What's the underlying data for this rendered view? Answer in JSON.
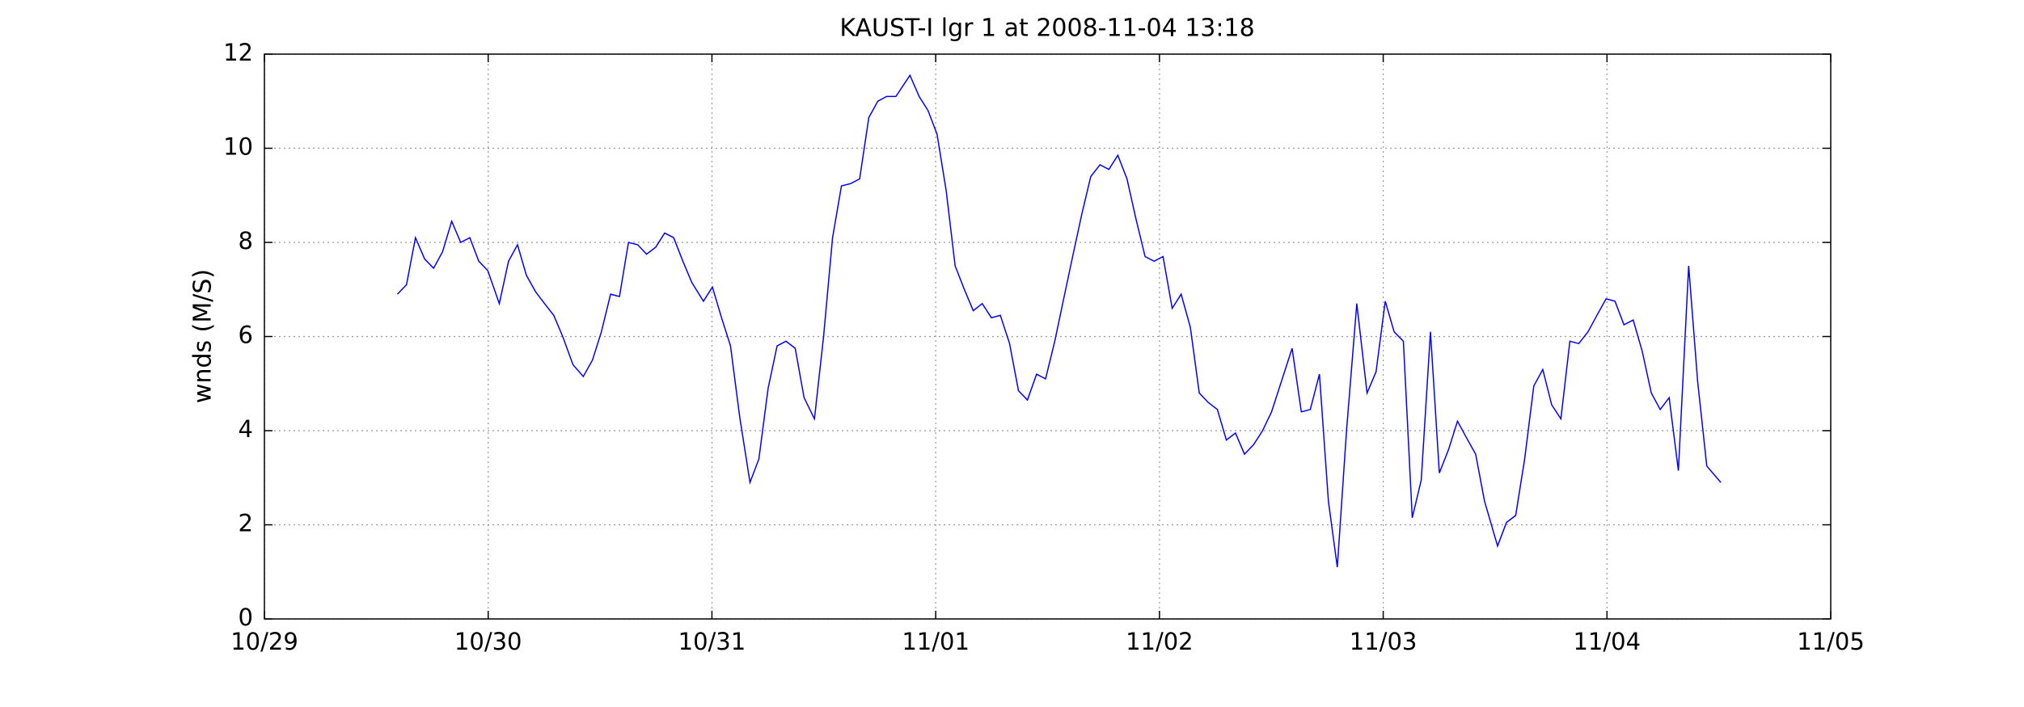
{
  "chart_data": {
    "type": "line",
    "title": "KAUST-I lgr 1 at 2008-11-04 13:18",
    "y_label": "wnds (M/S)",
    "color": "#0000ff",
    "grid": true,
    "xlim": [
      0,
      7
    ],
    "xticks": [
      {
        "value": 0,
        "label": "10/29"
      },
      {
        "value": 1,
        "label": "10/30"
      },
      {
        "value": 2,
        "label": "10/31"
      },
      {
        "value": 3,
        "label": "11/01"
      },
      {
        "value": 4,
        "label": "11/02"
      },
      {
        "value": 5,
        "label": "11/03"
      },
      {
        "value": 6,
        "label": "11/04"
      },
      {
        "value": 7,
        "label": "11/05"
      }
    ],
    "ylim": [
      0,
      12
    ],
    "yticks": [
      0,
      2,
      4,
      6,
      8,
      10,
      12
    ],
    "x": [
      0.594,
      0.635,
      0.675,
      0.716,
      0.756,
      0.796,
      0.837,
      0.877,
      0.918,
      0.958,
      0.998,
      1.05,
      1.091,
      1.131,
      1.171,
      1.212,
      1.252,
      1.293,
      1.333,
      1.379,
      1.425,
      1.466,
      1.506,
      1.547,
      1.587,
      1.627,
      1.668,
      1.708,
      1.749,
      1.789,
      1.829,
      1.87,
      1.91,
      1.962,
      2.002,
      2.043,
      2.083,
      2.124,
      2.17,
      2.21,
      2.251,
      2.291,
      2.331,
      2.372,
      2.412,
      2.458,
      2.499,
      2.539,
      2.579,
      2.62,
      2.66,
      2.701,
      2.741,
      2.781,
      2.822,
      2.885,
      2.926,
      2.966,
      3.006,
      3.047,
      3.087,
      3.128,
      3.168,
      3.208,
      3.249,
      3.289,
      3.33,
      3.37,
      3.41,
      3.451,
      3.491,
      3.532,
      3.572,
      3.612,
      3.653,
      3.693,
      3.734,
      3.774,
      3.814,
      3.855,
      3.895,
      3.936,
      3.976,
      4.016,
      4.057,
      4.097,
      4.138,
      4.178,
      4.218,
      4.259,
      4.299,
      4.34,
      4.38,
      4.42,
      4.461,
      4.501,
      4.593,
      4.634,
      4.674,
      4.715,
      4.755,
      4.795,
      4.836,
      4.882,
      4.928,
      4.968,
      5.009,
      5.049,
      5.09,
      5.13,
      5.17,
      5.211,
      5.251,
      5.292,
      5.332,
      5.372,
      5.413,
      5.453,
      5.511,
      5.551,
      5.592,
      5.632,
      5.673,
      5.713,
      5.753,
      5.794,
      5.834,
      5.874,
      5.915,
      5.955,
      5.996,
      6.036,
      6.076,
      6.117,
      6.157,
      6.198,
      6.238,
      6.278,
      6.319,
      6.365,
      6.405,
      6.446,
      6.509
    ],
    "values": [
      6.9,
      7.1,
      8.1,
      7.65,
      7.45,
      7.8,
      8.45,
      8.0,
      8.1,
      7.6,
      7.4,
      6.7,
      7.6,
      7.95,
      7.3,
      6.95,
      6.7,
      6.45,
      6.0,
      5.4,
      5.15,
      5.5,
      6.1,
      6.9,
      6.85,
      8.0,
      7.95,
      7.75,
      7.9,
      8.2,
      8.1,
      7.6,
      7.15,
      6.75,
      7.05,
      6.4,
      5.8,
      4.3,
      2.9,
      3.4,
      4.9,
      5.8,
      5.9,
      5.75,
      4.7,
      4.25,
      6.0,
      8.1,
      9.2,
      9.25,
      9.35,
      10.65,
      11.0,
      11.1,
      11.1,
      11.55,
      11.1,
      10.8,
      10.3,
      9.1,
      7.5,
      7.0,
      6.55,
      6.7,
      6.4,
      6.45,
      5.85,
      4.85,
      4.65,
      5.2,
      5.1,
      5.9,
      6.8,
      7.7,
      8.6,
      9.4,
      9.65,
      9.55,
      9.85,
      9.35,
      8.5,
      7.7,
      7.6,
      7.7,
      6.6,
      6.9,
      6.2,
      4.8,
      4.6,
      4.45,
      3.8,
      3.95,
      3.5,
      3.7,
      4.0,
      4.4,
      5.75,
      4.4,
      4.45,
      5.2,
      2.5,
      1.1,
      4.0,
      6.7,
      4.8,
      5.25,
      6.75,
      6.1,
      5.9,
      2.15,
      2.95,
      6.1,
      3.1,
      3.6,
      4.2,
      3.85,
      3.5,
      2.5,
      1.55,
      2.05,
      2.2,
      3.4,
      4.95,
      5.3,
      4.55,
      4.25,
      5.9,
      5.85,
      6.1,
      6.45,
      6.8,
      6.75,
      6.25,
      6.35,
      5.7,
      4.8,
      4.45,
      4.7,
      3.15,
      7.5,
      5.05,
      3.25,
      2.9
    ]
  }
}
